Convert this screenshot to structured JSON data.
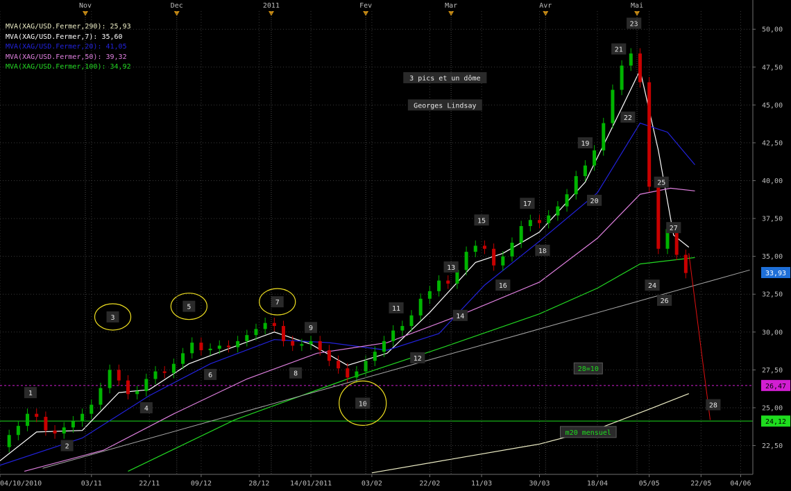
{
  "chart_data": {
    "type": "candlestick",
    "instrument": "XAG/USD",
    "colors": {
      "background": "#000000",
      "up": "#00b400",
      "down": "#c80000",
      "grid": "#3a3a3a",
      "axis_text": "#bdbdbd",
      "price_box": "#1e6fd8",
      "box_magenta": "#d21ed2",
      "box_green": "#1edc1e"
    },
    "legend": [
      {
        "label": "MVA(XAG/USD.Fermer,290): 25,93",
        "color": "#f0f0c8"
      },
      {
        "label": "MVA(XAG/USD.Fermer,7): 35,60",
        "color": "#ffffff"
      },
      {
        "label": "MVA(XAG/USD.Fermer,20): 41,05",
        "color": "#2222dd"
      },
      {
        "label": "MVA(XAG/USD.Fermer,50): 39,32",
        "color": "#e080e0"
      },
      {
        "label": "MVA(XAG/USD.Fermer,100): 34,92",
        "color": "#22d822"
      }
    ],
    "month_labels": [
      {
        "label": "Nov",
        "date": "2010-11-01"
      },
      {
        "label": "Dec",
        "date": "2010-12-01"
      },
      {
        "label": "2011",
        "date": "2011-01-01"
      },
      {
        "label": "Fev",
        "date": "2011-02-01"
      },
      {
        "label": "Mar",
        "date": "2011-03-01"
      },
      {
        "label": "Avr",
        "date": "2011-04-01"
      },
      {
        "label": "Mai",
        "date": "2011-05-01"
      }
    ],
    "x_ticks": [
      {
        "label": "04/10/2010",
        "date": "2010-10-04"
      },
      {
        "label": "03/11",
        "date": "2010-11-03"
      },
      {
        "label": "22/11",
        "date": "2010-11-22"
      },
      {
        "label": "09/12",
        "date": "2010-12-09"
      },
      {
        "label": "28/12",
        "date": "2010-12-28"
      },
      {
        "label": "14/01/2011",
        "date": "2011-01-14"
      },
      {
        "label": "03/02",
        "date": "2011-02-03"
      },
      {
        "label": "22/02",
        "date": "2011-02-22"
      },
      {
        "label": "11/03",
        "date": "2011-03-11"
      },
      {
        "label": "30/03",
        "date": "2011-03-30"
      },
      {
        "label": "18/04",
        "date": "2011-04-18"
      },
      {
        "label": "05/05",
        "date": "2011-05-05"
      },
      {
        "label": "22/05",
        "date": "2011-05-22"
      },
      {
        "label": "04/06",
        "date": "2011-06-04"
      }
    ],
    "x_range": [
      "2010-10-04",
      "2011-06-08"
    ],
    "y_ticks": [
      "22,50",
      "25,00",
      "27,50",
      "30,00",
      "32,50",
      "35,00",
      "37,50",
      "40,00",
      "42,50",
      "45,00",
      "47,50",
      "50,00"
    ],
    "y_range": [
      20.6,
      51.2
    ],
    "price_boxes": [
      {
        "value": 33.93,
        "label": "33,93",
        "color": "#1e6fd8"
      },
      {
        "value": 26.47,
        "label": "26,47",
        "color": "#d21ed2"
      },
      {
        "value": 24.12,
        "label": "24,12",
        "color": "#1edc1e"
      }
    ],
    "horizontal_lines": [
      {
        "value": 26.47,
        "color": "#d21ed2",
        "dashed": true
      },
      {
        "value": 24.12,
        "color": "#1edc1e",
        "dashed": false
      }
    ],
    "trendlines": [
      {
        "from": [
          "2010-10-18",
          21.0
        ],
        "to": [
          "2011-06-07",
          34.1
        ],
        "color": "#a8a8a8"
      },
      {
        "from": [
          "2011-05-18",
          35.2
        ],
        "to": [
          "2011-05-25",
          24.2
        ],
        "color": "#e01010"
      }
    ],
    "closes": [
      {
        "date": "2010-10-04",
        "close": 22.4
      },
      {
        "date": "2010-10-07",
        "close": 23.2
      },
      {
        "date": "2010-10-10",
        "close": 23.8
      },
      {
        "date": "2010-10-13",
        "close": 24.6
      },
      {
        "date": "2010-10-16",
        "close": 24.4
      },
      {
        "date": "2010-10-19",
        "close": 23.5
      },
      {
        "date": "2010-10-22",
        "close": 23.3
      },
      {
        "date": "2010-10-25",
        "close": 23.7
      },
      {
        "date": "2010-10-28",
        "close": 24.1
      },
      {
        "date": "2010-10-31",
        "close": 24.6
      },
      {
        "date": "2010-11-03",
        "close": 25.2
      },
      {
        "date": "2010-11-06",
        "close": 26.3
      },
      {
        "date": "2010-11-09",
        "close": 27.5
      },
      {
        "date": "2010-11-12",
        "close": 26.8
      },
      {
        "date": "2010-11-15",
        "close": 25.9
      },
      {
        "date": "2010-11-18",
        "close": 26.1
      },
      {
        "date": "2010-11-21",
        "close": 26.9
      },
      {
        "date": "2010-11-24",
        "close": 27.4
      },
      {
        "date": "2010-11-27",
        "close": 27.3
      },
      {
        "date": "2010-11-30",
        "close": 27.9
      },
      {
        "date": "2010-12-03",
        "close": 28.6
      },
      {
        "date": "2010-12-06",
        "close": 29.3
      },
      {
        "date": "2010-12-09",
        "close": 28.8
      },
      {
        "date": "2010-12-12",
        "close": 28.9
      },
      {
        "date": "2010-12-15",
        "close": 29.1
      },
      {
        "date": "2010-12-18",
        "close": 29.0
      },
      {
        "date": "2010-12-21",
        "close": 29.4
      },
      {
        "date": "2010-12-24",
        "close": 29.8
      },
      {
        "date": "2010-12-27",
        "close": 30.2
      },
      {
        "date": "2010-12-30",
        "close": 30.6
      },
      {
        "date": "2011-01-02",
        "close": 30.4
      },
      {
        "date": "2011-01-05",
        "close": 29.4
      },
      {
        "date": "2011-01-08",
        "close": 29.1
      },
      {
        "date": "2011-01-11",
        "close": 29.2
      },
      {
        "date": "2011-01-14",
        "close": 29.4
      },
      {
        "date": "2011-01-17",
        "close": 28.8
      },
      {
        "date": "2011-01-20",
        "close": 28.1
      },
      {
        "date": "2011-01-23",
        "close": 27.6
      },
      {
        "date": "2011-01-26",
        "close": 27.0
      },
      {
        "date": "2011-01-29",
        "close": 27.4
      },
      {
        "date": "2011-02-01",
        "close": 28.1
      },
      {
        "date": "2011-02-04",
        "close": 28.7
      },
      {
        "date": "2011-02-07",
        "close": 29.4
      },
      {
        "date": "2011-02-10",
        "close": 30.1
      },
      {
        "date": "2011-02-13",
        "close": 30.4
      },
      {
        "date": "2011-02-16",
        "close": 31.1
      },
      {
        "date": "2011-02-19",
        "close": 32.2
      },
      {
        "date": "2011-02-22",
        "close": 32.7
      },
      {
        "date": "2011-02-25",
        "close": 33.4
      },
      {
        "date": "2011-02-28",
        "close": 33.2
      },
      {
        "date": "2011-03-03",
        "close": 34.1
      },
      {
        "date": "2011-03-06",
        "close": 35.3
      },
      {
        "date": "2011-03-09",
        "close": 35.7
      },
      {
        "date": "2011-03-12",
        "close": 35.5
      },
      {
        "date": "2011-03-15",
        "close": 34.4
      },
      {
        "date": "2011-03-18",
        "close": 35.0
      },
      {
        "date": "2011-03-21",
        "close": 35.9
      },
      {
        "date": "2011-03-24",
        "close": 37.0
      },
      {
        "date": "2011-03-27",
        "close": 37.4
      },
      {
        "date": "2011-03-30",
        "close": 37.2
      },
      {
        "date": "2011-04-02",
        "close": 37.7
      },
      {
        "date": "2011-04-05",
        "close": 38.3
      },
      {
        "date": "2011-04-08",
        "close": 39.1
      },
      {
        "date": "2011-04-11",
        "close": 40.3
      },
      {
        "date": "2011-04-14",
        "close": 41.0
      },
      {
        "date": "2011-04-17",
        "close": 42.0
      },
      {
        "date": "2011-04-20",
        "close": 43.8
      },
      {
        "date": "2011-04-23",
        "close": 46.0
      },
      {
        "date": "2011-04-26",
        "close": 47.6
      },
      {
        "date": "2011-04-29",
        "close": 48.4
      },
      {
        "date": "2011-05-02",
        "close": 46.5
      },
      {
        "date": "2011-05-05",
        "close": 39.6
      },
      {
        "date": "2011-05-08",
        "close": 35.5
      },
      {
        "date": "2011-05-11",
        "close": 36.8
      },
      {
        "date": "2011-05-14",
        "close": 35.1
      },
      {
        "date": "2011-05-17",
        "close": 33.9
      }
    ],
    "moving_averages": [
      {
        "period": "290",
        "color": "#f0f0c8",
        "points": [
          [
            "2011-02-03",
            20.7
          ],
          [
            "2011-03-01",
            21.6
          ],
          [
            "2011-03-30",
            22.6
          ],
          [
            "2011-04-18",
            23.6
          ],
          [
            "2011-05-05",
            24.9
          ],
          [
            "2011-05-18",
            25.93
          ]
        ]
      },
      {
        "period": "7",
        "color": "#ffffff",
        "points": [
          [
            "2010-10-04",
            21.5
          ],
          [
            "2010-10-16",
            23.4
          ],
          [
            "2010-10-31",
            23.5
          ],
          [
            "2010-11-12",
            26.0
          ],
          [
            "2010-11-22",
            26.2
          ],
          [
            "2010-12-05",
            27.9
          ],
          [
            "2010-12-18",
            28.9
          ],
          [
            "2011-01-02",
            30.0
          ],
          [
            "2011-01-14",
            29.2
          ],
          [
            "2011-01-26",
            27.8
          ],
          [
            "2011-02-08",
            28.6
          ],
          [
            "2011-02-22",
            31.3
          ],
          [
            "2011-03-09",
            34.6
          ],
          [
            "2011-03-18",
            35.2
          ],
          [
            "2011-03-30",
            36.6
          ],
          [
            "2011-04-14",
            39.9
          ],
          [
            "2011-04-26",
            44.8
          ],
          [
            "2011-05-02",
            47.3
          ],
          [
            "2011-05-08",
            42.0
          ],
          [
            "2011-05-13",
            36.4
          ],
          [
            "2011-05-18",
            35.6
          ]
        ]
      },
      {
        "period": "20",
        "color": "#2222dd",
        "points": [
          [
            "2010-10-04",
            21.2
          ],
          [
            "2010-10-31",
            23.0
          ],
          [
            "2010-11-22",
            25.8
          ],
          [
            "2010-12-12",
            27.9
          ],
          [
            "2011-01-02",
            29.5
          ],
          [
            "2011-01-20",
            29.3
          ],
          [
            "2011-02-08",
            28.8
          ],
          [
            "2011-02-25",
            29.9
          ],
          [
            "2011-03-12",
            33.1
          ],
          [
            "2011-03-30",
            36.0
          ],
          [
            "2011-04-18",
            39.2
          ],
          [
            "2011-05-02",
            43.8
          ],
          [
            "2011-05-11",
            43.2
          ],
          [
            "2011-05-20",
            41.05
          ]
        ]
      },
      {
        "period": "50",
        "color": "#e080e0",
        "points": [
          [
            "2010-10-12",
            20.8
          ],
          [
            "2010-11-07",
            22.2
          ],
          [
            "2010-11-30",
            24.6
          ],
          [
            "2010-12-24",
            26.9
          ],
          [
            "2011-01-16",
            28.6
          ],
          [
            "2011-02-08",
            29.3
          ],
          [
            "2011-03-05",
            31.2
          ],
          [
            "2011-03-30",
            33.3
          ],
          [
            "2011-04-18",
            36.2
          ],
          [
            "2011-05-02",
            39.1
          ],
          [
            "2011-05-12",
            39.5
          ],
          [
            "2011-05-20",
            39.32
          ]
        ]
      },
      {
        "period": "100",
        "color": "#22d822",
        "points": [
          [
            "2010-11-15",
            20.8
          ],
          [
            "2010-12-20",
            24.2
          ],
          [
            "2011-01-26",
            26.9
          ],
          [
            "2011-02-25",
            28.9
          ],
          [
            "2011-03-30",
            31.2
          ],
          [
            "2011-04-18",
            32.9
          ],
          [
            "2011-05-02",
            34.5
          ],
          [
            "2011-05-20",
            34.92
          ]
        ]
      }
    ],
    "annotations": [
      {
        "label": "1",
        "date": "2010-10-14",
        "price": 26.0,
        "circle": false
      },
      {
        "label": "2",
        "date": "2010-10-26",
        "price": 22.5,
        "circle": false
      },
      {
        "label": "3",
        "date": "2010-11-10",
        "price": 31.0,
        "circle": true
      },
      {
        "label": "4",
        "date": "2010-11-21",
        "price": 25.0,
        "circle": false
      },
      {
        "label": "5",
        "date": "2010-12-05",
        "price": 31.7,
        "circle": true
      },
      {
        "label": "6",
        "date": "2010-12-12",
        "price": 27.2,
        "circle": false
      },
      {
        "label": "7",
        "date": "2011-01-03",
        "price": 32.0,
        "circle": true
      },
      {
        "label": "8",
        "date": "2011-01-09",
        "price": 27.3,
        "circle": false
      },
      {
        "label": "9",
        "date": "2011-01-14",
        "price": 30.3,
        "circle": false
      },
      {
        "label": "10",
        "date": "2011-01-31",
        "price": 25.3,
        "circle": true
      },
      {
        "label": "11",
        "date": "2011-02-11",
        "price": 31.6,
        "circle": false
      },
      {
        "label": "12",
        "date": "2011-02-18",
        "price": 28.3,
        "circle": false
      },
      {
        "label": "13",
        "date": "2011-03-01",
        "price": 34.3,
        "circle": false
      },
      {
        "label": "14",
        "date": "2011-03-04",
        "price": 31.1,
        "circle": false
      },
      {
        "label": "15",
        "date": "2011-03-11",
        "price": 37.4,
        "circle": false
      },
      {
        "label": "16",
        "date": "2011-03-18",
        "price": 33.1,
        "circle": false
      },
      {
        "label": "17",
        "date": "2011-03-26",
        "price": 38.5,
        "circle": false
      },
      {
        "label": "18",
        "date": "2011-03-31",
        "price": 35.4,
        "circle": false
      },
      {
        "label": "19",
        "date": "2011-04-14",
        "price": 42.5,
        "circle": false
      },
      {
        "label": "20",
        "date": "2011-04-17",
        "price": 38.7,
        "circle": false
      },
      {
        "label": "21",
        "date": "2011-04-25",
        "price": 48.7,
        "circle": false
      },
      {
        "label": "22",
        "date": "2011-04-28",
        "price": 44.2,
        "circle": false
      },
      {
        "label": "23",
        "date": "2011-04-30",
        "price": 50.4,
        "circle": false
      },
      {
        "label": "24",
        "date": "2011-05-06",
        "price": 33.1,
        "circle": false
      },
      {
        "label": "25",
        "date": "2011-05-09",
        "price": 39.9,
        "circle": false
      },
      {
        "label": "26",
        "date": "2011-05-10",
        "price": 32.1,
        "circle": false
      },
      {
        "label": "27",
        "date": "2011-05-13",
        "price": 36.9,
        "circle": false
      },
      {
        "label": "28",
        "date": "2011-05-26",
        "price": 25.2,
        "circle": false
      },
      {
        "label": "28=10",
        "date": "2011-04-15",
        "price": 27.6,
        "circle": false,
        "text_color": "#1edc1e",
        "bordered": true
      },
      {
        "label": "m20 mensuel",
        "date": "2011-04-15",
        "price": 23.4,
        "circle": false,
        "text_color": "#1edc1e",
        "bordered": true
      },
      {
        "label": "3 pics et un dôme",
        "date": "2011-02-27",
        "price": 46.8,
        "circle": false
      },
      {
        "label": "Georges Lindsay",
        "date": "2011-02-27",
        "price": 45.0,
        "circle": false
      }
    ]
  }
}
